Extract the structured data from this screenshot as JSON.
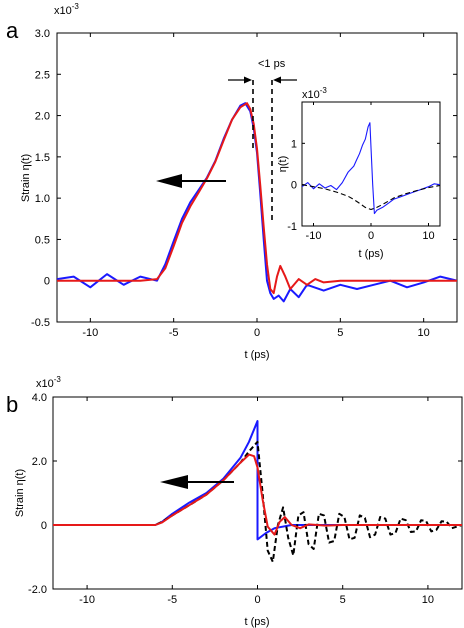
{
  "chart_data": [
    {
      "panel_label": "a",
      "type": "line",
      "xlabel": "t (ps)",
      "ylabel": "Strain η(t)",
      "y_exponent": "x10",
      "y_exponent_power": "-3",
      "xlim": [
        -12,
        12
      ],
      "ylim": [
        -0.5,
        3.0
      ],
      "xticks": [
        "-10",
        "-5",
        "0",
        "5",
        "10"
      ],
      "xtick_values": [
        -10,
        -5,
        0,
        5,
        10
      ],
      "yticks": [
        "-0.5",
        "0",
        "0.5",
        "1.0",
        "1.5",
        "2.0",
        "2.5",
        "3.0"
      ],
      "ytick_values": [
        -0.5,
        0,
        0.5,
        1.0,
        1.5,
        2.0,
        2.5,
        3.0
      ],
      "annotation": "<1 ps",
      "arrow_direction": "left",
      "series": [
        {
          "color": "#1a1aff",
          "style": "solid",
          "x": [
            -12,
            -11,
            -10,
            -9,
            -8,
            -7,
            -6,
            -5.5,
            -5,
            -4.5,
            -4,
            -3.5,
            -3,
            -2.5,
            -2,
            -1.5,
            -1,
            -0.7,
            -0.4,
            -0.2,
            0,
            0.2,
            0.4,
            0.6,
            0.8,
            1,
            1.3,
            1.6,
            2,
            2.5,
            3,
            4,
            5,
            6,
            7,
            8,
            9,
            10,
            11,
            12
          ],
          "y": [
            0.02,
            0.05,
            -0.08,
            0.08,
            -0.05,
            0.05,
            0.0,
            0.2,
            0.48,
            0.75,
            0.95,
            1.1,
            1.25,
            1.45,
            1.72,
            1.95,
            2.12,
            2.15,
            2.05,
            1.85,
            1.55,
            1.05,
            0.5,
            0.0,
            -0.15,
            -0.22,
            -0.18,
            -0.25,
            -0.1,
            -0.2,
            -0.05,
            -0.12,
            -0.05,
            -0.1,
            -0.05,
            0.0,
            -0.08,
            -0.02,
            0.05,
            0.0
          ]
        },
        {
          "color": "#e61919",
          "style": "solid",
          "x": [
            -12,
            -10,
            -8,
            -7,
            -6,
            -5.5,
            -5,
            -4.5,
            -4,
            -3.5,
            -3,
            -2.5,
            -2,
            -1.5,
            -1,
            -0.6,
            -0.4,
            -0.2,
            0,
            0.2,
            0.4,
            0.6,
            0.8,
            1.0,
            1.2,
            1.4,
            1.7,
            2,
            2.5,
            3,
            3.5,
            4,
            5,
            6,
            8,
            10,
            12
          ],
          "y": [
            0,
            0,
            0,
            0,
            0.02,
            0.15,
            0.42,
            0.7,
            0.9,
            1.07,
            1.24,
            1.44,
            1.7,
            1.95,
            2.1,
            2.15,
            2.08,
            1.9,
            1.6,
            1.15,
            0.65,
            0.2,
            -0.1,
            -0.15,
            0.05,
            0.18,
            0.05,
            -0.1,
            0.02,
            -0.05,
            0.02,
            -0.02,
            0,
            0,
            0,
            0,
            0
          ]
        }
      ],
      "inset": {
        "type": "line",
        "xlabel": "t (ps)",
        "ylabel": "η(t)",
        "y_exponent": "x10",
        "y_exponent_power": "-3",
        "xlim": [
          -12,
          12
        ],
        "ylim": [
          -1,
          2
        ],
        "xticks": [
          "-10",
          "0",
          "10"
        ],
        "xtick_values": [
          -10,
          0,
          10
        ],
        "yticks": [
          "-1",
          "0",
          "1"
        ],
        "ytick_values": [
          -1,
          0,
          1
        ],
        "series": [
          {
            "color": "#1a1aff",
            "style": "solid",
            "x": [
              -12,
              -11,
              -10,
              -9,
              -8,
              -7,
              -6,
              -5,
              -4,
              -3,
              -2.5,
              -2,
              -1.5,
              -1,
              -0.5,
              -0.2,
              0,
              0.3,
              0.6,
              1,
              2,
              3,
              4,
              5,
              6,
              7,
              8,
              9,
              10,
              11,
              12
            ],
            "y": [
              -0.05,
              0.05,
              -0.1,
              0.02,
              -0.08,
              -0.02,
              -0.12,
              0.05,
              0.3,
              0.45,
              0.6,
              0.75,
              0.95,
              1.1,
              1.4,
              1.5,
              0.9,
              0.0,
              -0.7,
              -0.62,
              -0.55,
              -0.45,
              -0.35,
              -0.3,
              -0.25,
              -0.2,
              -0.15,
              -0.1,
              -0.05,
              0.02,
              0.0
            ]
          },
          {
            "color": "#000000",
            "style": "dashed",
            "x": [
              -12,
              -10,
              -8,
              -6,
              -4,
              -3,
              -2,
              -1,
              0,
              1,
              2,
              3,
              4,
              6,
              8,
              10,
              12
            ],
            "y": [
              0.0,
              -0.05,
              -0.1,
              -0.18,
              -0.28,
              -0.36,
              -0.45,
              -0.55,
              -0.6,
              -0.55,
              -0.48,
              -0.4,
              -0.32,
              -0.22,
              -0.14,
              -0.07,
              -0.02
            ]
          }
        ]
      }
    },
    {
      "panel_label": "b",
      "type": "line",
      "xlabel": "t (ps)",
      "ylabel": "Strain η(t)",
      "y_exponent": "x10",
      "y_exponent_power": "-3",
      "xlim": [
        -12,
        12
      ],
      "ylim": [
        -2.0,
        4.0
      ],
      "xticks": [
        "-10",
        "-5",
        "0",
        "5",
        "10"
      ],
      "xtick_values": [
        -10,
        -5,
        0,
        5,
        10
      ],
      "yticks": [
        "-2.0",
        "0",
        "2.0",
        "4.0"
      ],
      "ytick_values": [
        -2.0,
        0,
        2.0,
        4.0
      ],
      "arrow_direction": "left",
      "series": [
        {
          "color": "#1a1aff",
          "style": "solid",
          "x": [
            -12,
            -6,
            -5.6,
            -5,
            -4,
            -3,
            -2,
            -1,
            -0.5,
            0,
            0.001,
            0.5,
            1,
            2,
            12
          ],
          "y": [
            0,
            0,
            0.1,
            0.35,
            0.7,
            1.0,
            1.45,
            2.1,
            2.6,
            3.25,
            -0.45,
            -0.25,
            -0.1,
            0,
            0
          ]
        },
        {
          "color": "#000000",
          "style": "dashed",
          "x": [
            -12,
            -6,
            -5.6,
            -5,
            -4,
            -3,
            -2,
            -1,
            -0.5,
            0,
            0.3,
            0.6,
            0.9,
            1.2,
            1.5,
            1.8,
            2.1,
            2.4,
            2.7,
            3.0,
            3.3,
            3.6,
            3.9,
            4.2,
            4.5,
            4.8,
            5.1,
            5.4,
            5.7,
            6.0,
            6.3,
            6.6,
            6.9,
            7.2,
            7.5,
            7.8,
            8.1,
            8.4,
            8.7,
            9.0,
            9.3,
            9.6,
            9.9,
            10.2,
            10.5,
            10.8,
            11.1,
            11.4,
            11.7,
            12
          ],
          "y": [
            0,
            0,
            0.1,
            0.3,
            0.62,
            0.95,
            1.4,
            1.95,
            2.3,
            2.6,
            1.0,
            -0.8,
            -1.15,
            0.0,
            0.55,
            -0.4,
            -0.95,
            0.3,
            0.4,
            -0.6,
            -0.75,
            0.35,
            0.3,
            -0.55,
            -0.5,
            0.35,
            0.25,
            -0.45,
            -0.4,
            0.3,
            0.22,
            -0.38,
            -0.3,
            0.25,
            0.2,
            -0.3,
            -0.25,
            0.2,
            0.15,
            -0.22,
            -0.2,
            0.15,
            0.12,
            -0.2,
            -0.15,
            0.12,
            0.1,
            -0.1,
            -0.05,
            0.0
          ]
        },
        {
          "color": "#e61919",
          "style": "solid",
          "x": [
            -12,
            -6,
            -5.6,
            -5,
            -4,
            -3,
            -2,
            -1,
            -0.5,
            -0.2,
            0,
            0.3,
            0.6,
            1,
            1.3,
            1.6,
            2,
            2.5,
            3,
            4,
            5,
            6,
            8,
            10,
            12
          ],
          "y": [
            0,
            0,
            0.08,
            0.3,
            0.62,
            0.95,
            1.4,
            1.95,
            2.2,
            2.15,
            1.8,
            0.8,
            -0.05,
            -0.3,
            0.1,
            0.25,
            0.0,
            -0.1,
            0.02,
            -0.02,
            0,
            0,
            0,
            0,
            0
          ]
        }
      ]
    }
  ]
}
